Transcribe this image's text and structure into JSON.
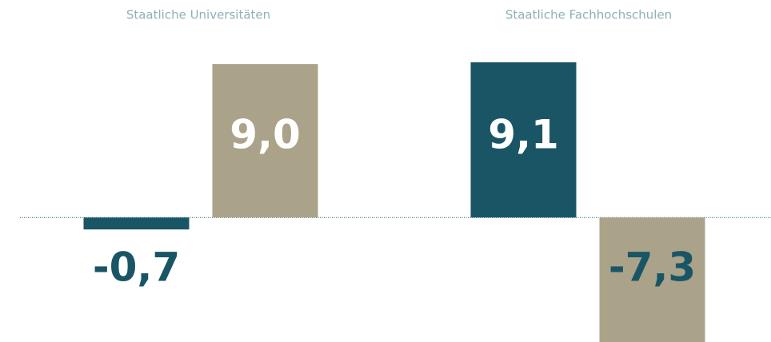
{
  "chart_data": {
    "type": "bar",
    "categories": [
      "Staatliche Universitäten",
      "Staatliche Fachhochschulen"
    ],
    "series": [
      {
        "color": "#1a5566",
        "values": [
          -0.7,
          9.1
        ],
        "value_labels": [
          "-0,7",
          "9,1"
        ]
      },
      {
        "color": "#aaa38a",
        "values": [
          9.0,
          -7.3
        ],
        "value_labels": [
          "9,0",
          "-7,3"
        ]
      }
    ],
    "ylim": [
      -7.3,
      9.1
    ]
  }
}
